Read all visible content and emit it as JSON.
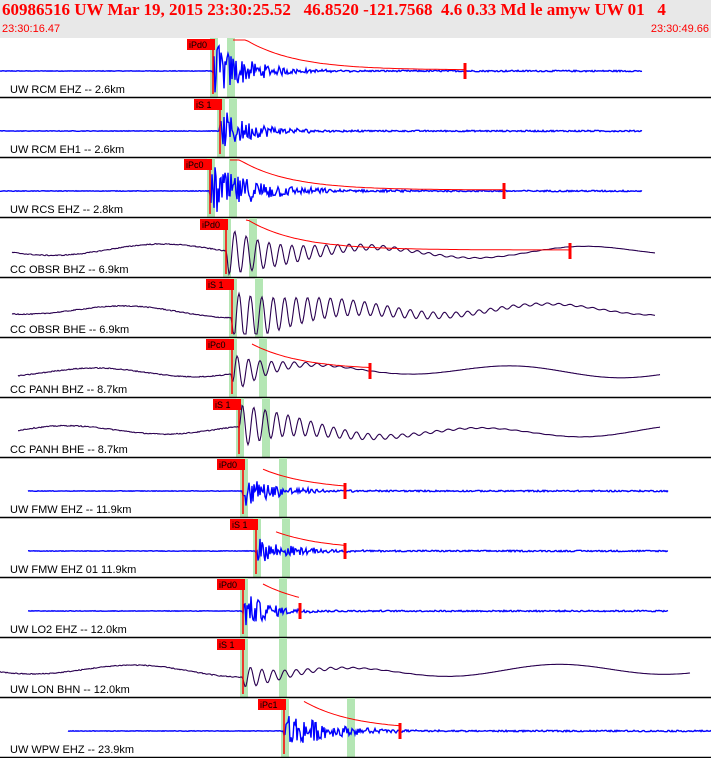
{
  "header": {
    "title": "60986516 UW Mar 19, 2015 23:30:25.52   46.8520 -121.7568  4.6 0.33 Md le amyw UW 01   4",
    "start_time": "23:30:16.47",
    "end_time": "23:30:49.66"
  },
  "colors": {
    "trace_blue": "#0000ff",
    "trace_dark": "#2a0050",
    "pick": "#ff0000",
    "highlight": "#b4e6b4",
    "header_bg": "#e8e8e8"
  },
  "traces": [
    {
      "label": "UW RCM EHZ -- 2.6km",
      "pick_label": "iPd0",
      "color": "blue"
    },
    {
      "label": "UW RCM EH1 -- 2.6km",
      "pick_label": "iS 1",
      "color": "blue"
    },
    {
      "label": "UW RCS EHZ -- 2.8km",
      "pick_label": "iPc0",
      "color": "blue"
    },
    {
      "label": "CC OBSR BHZ -- 6.9km",
      "pick_label": "iPd0",
      "color": "dark"
    },
    {
      "label": "CC OBSR BHE -- 6.9km",
      "pick_label": "iS 1",
      "color": "dark"
    },
    {
      "label": "CC PANH BHZ -- 8.7km",
      "pick_label": "iPc0",
      "color": "dark"
    },
    {
      "label": "CC PANH BHE -- 8.7km",
      "pick_label": "iS 1",
      "color": "dark"
    },
    {
      "label": "UW FMW EHZ -- 11.9km",
      "pick_label": "iPd0",
      "color": "blue"
    },
    {
      "label": "UW FMW EHZ 01 11.9km",
      "pick_label": "iS 1",
      "color": "blue"
    },
    {
      "label": "UW LO2 EHZ -- 12.0km",
      "pick_label": "iPd0",
      "color": "blue"
    },
    {
      "label": "UW LON BHN -- 12.0km",
      "pick_label": "iS 1",
      "color": "dark"
    },
    {
      "label": "UW WPW EHZ -- 23.9km",
      "pick_label": "iPc1",
      "color": "blue"
    }
  ]
}
